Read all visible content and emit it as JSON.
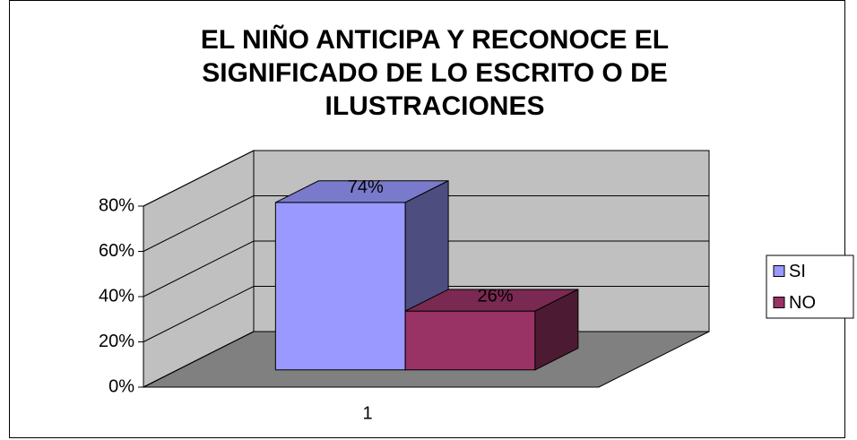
{
  "chart_data": {
    "type": "bar3d",
    "title": "EL NIÑO ANTICIPA Y RECONOCE  EL SIGNIFICADO DE LO ESCRITO O DE ILUSTRACIONES",
    "categories": [
      "1"
    ],
    "series": [
      {
        "name": "SI",
        "color": "#9999ff",
        "values": [
          74
        ],
        "value_labels": [
          "74%"
        ]
      },
      {
        "name": "NO",
        "color": "#993366",
        "values": [
          26
        ],
        "value_labels": [
          "26%"
        ]
      }
    ],
    "ylim": [
      0,
      80
    ],
    "yticks": [
      {
        "value": 0,
        "label": "0%"
      },
      {
        "value": 20,
        "label": "20%"
      },
      {
        "value": 40,
        "label": "40%"
      },
      {
        "value": 60,
        "label": "60%"
      },
      {
        "value": 80,
        "label": "80%"
      }
    ],
    "grid": true,
    "legend": "right"
  }
}
